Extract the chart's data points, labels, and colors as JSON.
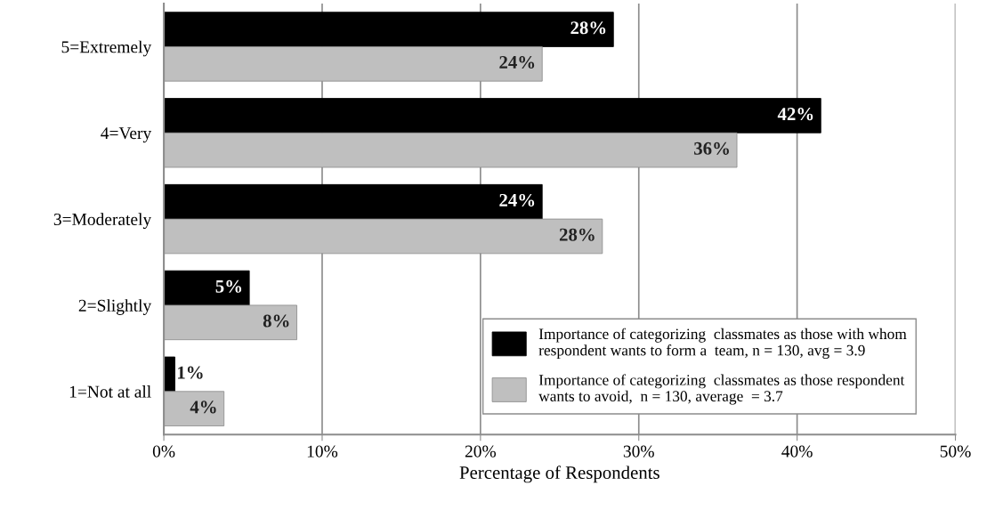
{
  "chart_data": {
    "type": "bar",
    "orientation": "horizontal",
    "xlabel": "Percentage of Respondents",
    "categories": [
      "5=Extremely",
      "4=Very",
      "3=Moderately",
      "2=Slightly",
      "1=Not at all"
    ],
    "series": [
      {
        "name": "Importance of categorizing  classmates as those with whom respondent wants to form a  team, n = 130, avg = 3.9",
        "color": "#000000",
        "values": [
          28.4,
          41.5,
          23.9,
          5.4,
          0.7
        ],
        "value_labels": [
          "28%",
          "42%",
          "24%",
          "5%",
          "1%"
        ]
      },
      {
        "name": "Importance of categorizing  classmates as those respondent wants to avoid,  n = 130, average  = 3.7",
        "color": "#bfbfbf",
        "values": [
          23.9,
          36.2,
          27.7,
          8.4,
          3.8
        ],
        "value_labels": [
          "24%",
          "36%",
          "28%",
          "8%",
          "4%"
        ]
      }
    ],
    "xlim": [
      0,
      50
    ],
    "xticks": [
      {
        "value": 0,
        "label": "0%"
      },
      {
        "value": 10,
        "label": "10%"
      },
      {
        "value": 20,
        "label": "20%"
      },
      {
        "value": 30,
        "label": "30%"
      },
      {
        "value": 40,
        "label": "40%"
      },
      {
        "value": 50,
        "label": "50%"
      }
    ],
    "grid": "x",
    "legend": "bottom right"
  }
}
